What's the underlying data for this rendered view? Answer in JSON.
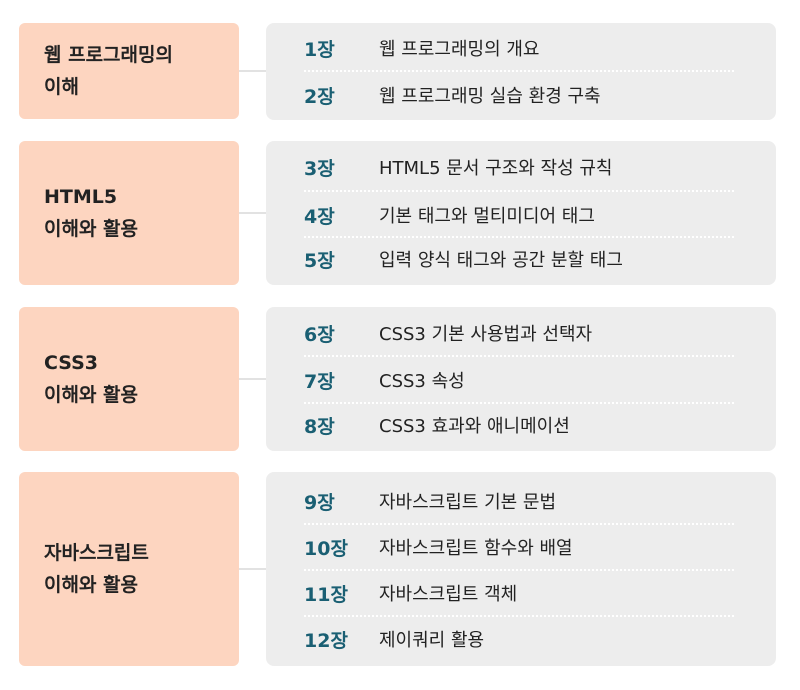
{
  "parts": [
    {
      "title_lines": [
        "웹 프로그래밍의",
        "이해"
      ],
      "chapters": [
        {
          "num": "1장",
          "title": "웹 프로그래밍의 개요"
        },
        {
          "num": "2장",
          "title": "웹 프로그래밍 실습 환경 구축"
        }
      ]
    },
    {
      "title_lines": [
        "HTML5",
        "이해와 활용"
      ],
      "chapters": [
        {
          "num": "3장",
          "title": "HTML5 문서 구조와 작성 규칙"
        },
        {
          "num": "4장",
          "title": "기본 태그와 멀티미디어 태그"
        },
        {
          "num": "5장",
          "title": "입력 양식 태그와 공간 분할 태그"
        }
      ]
    },
    {
      "title_lines": [
        "CSS3",
        "이해와 활용"
      ],
      "chapters": [
        {
          "num": "6장",
          "title": "CSS3 기본 사용법과 선택자"
        },
        {
          "num": "7장",
          "title": "CSS3 속성"
        },
        {
          "num": "8장",
          "title": "CSS3 효과와 애니메이션"
        }
      ]
    },
    {
      "title_lines": [
        "자바스크립트",
        "이해와 활용"
      ],
      "chapters": [
        {
          "num": "9장",
          "title": "자바스크립트 기본 문법"
        },
        {
          "num": "10장",
          "title": "자바스크립트 함수와 배열"
        },
        {
          "num": "11장",
          "title": "자바스크립트 객체"
        },
        {
          "num": "12장",
          "title": "제이쿼리 활용"
        }
      ]
    }
  ]
}
